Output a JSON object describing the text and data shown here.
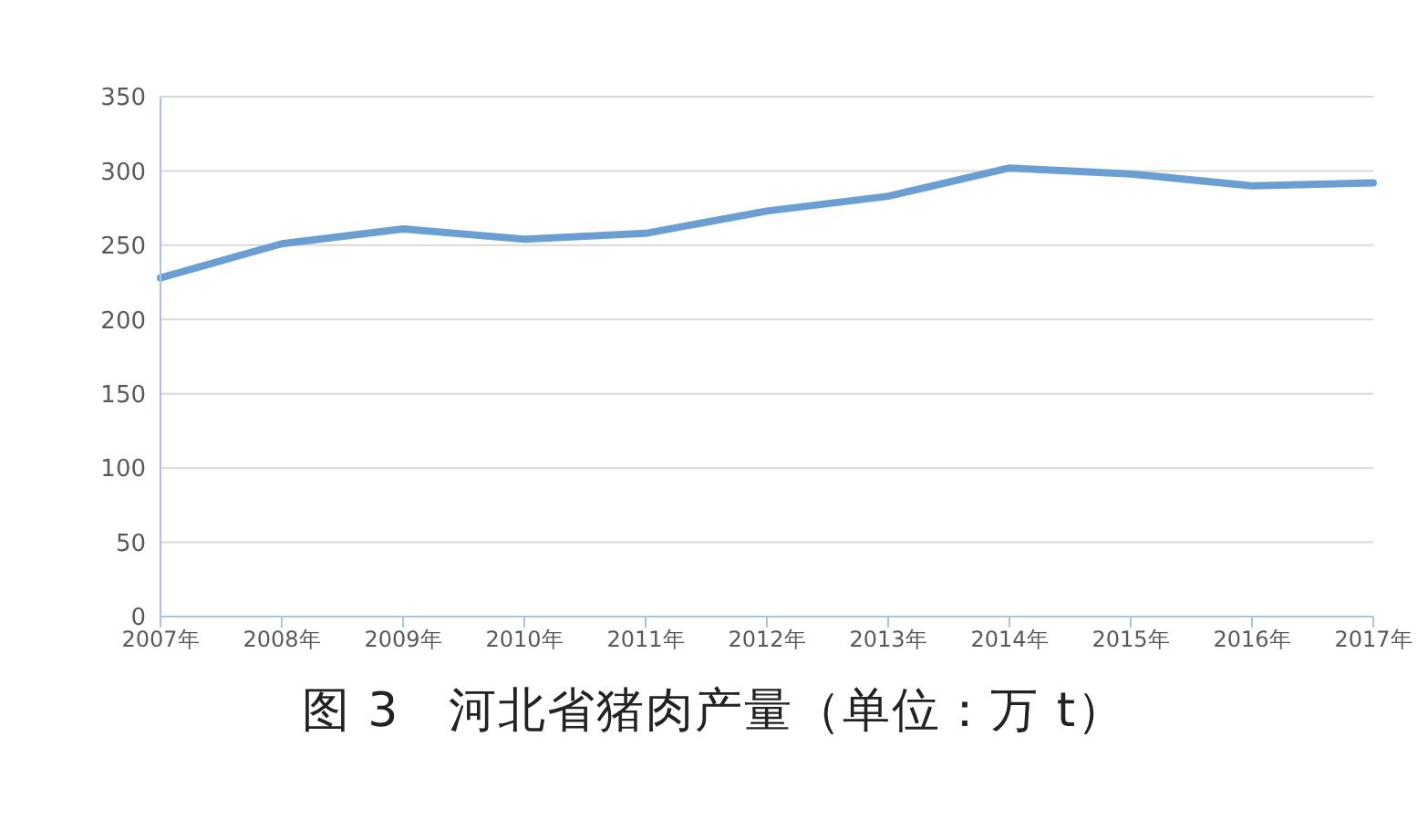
{
  "chart_data": {
    "type": "line",
    "title": "图 3　河北省猪肉产量（单位：万 t）",
    "categories": [
      "2007年",
      "2008年",
      "2009年",
      "2010年",
      "2011年",
      "2012年",
      "2013年",
      "2014年",
      "2015年",
      "2016年",
      "2017年"
    ],
    "series": [
      {
        "color": "#6b9fd3",
        "values": [
          228,
          251,
          261,
          254,
          258,
          273,
          283,
          302,
          298,
          290,
          292
        ]
      }
    ],
    "ylim": [
      0,
      350
    ],
    "yticks": [
      0,
      50,
      100,
      150,
      200,
      250,
      300,
      350
    ],
    "grid": "y",
    "marker": "none",
    "line_style": "solid"
  }
}
